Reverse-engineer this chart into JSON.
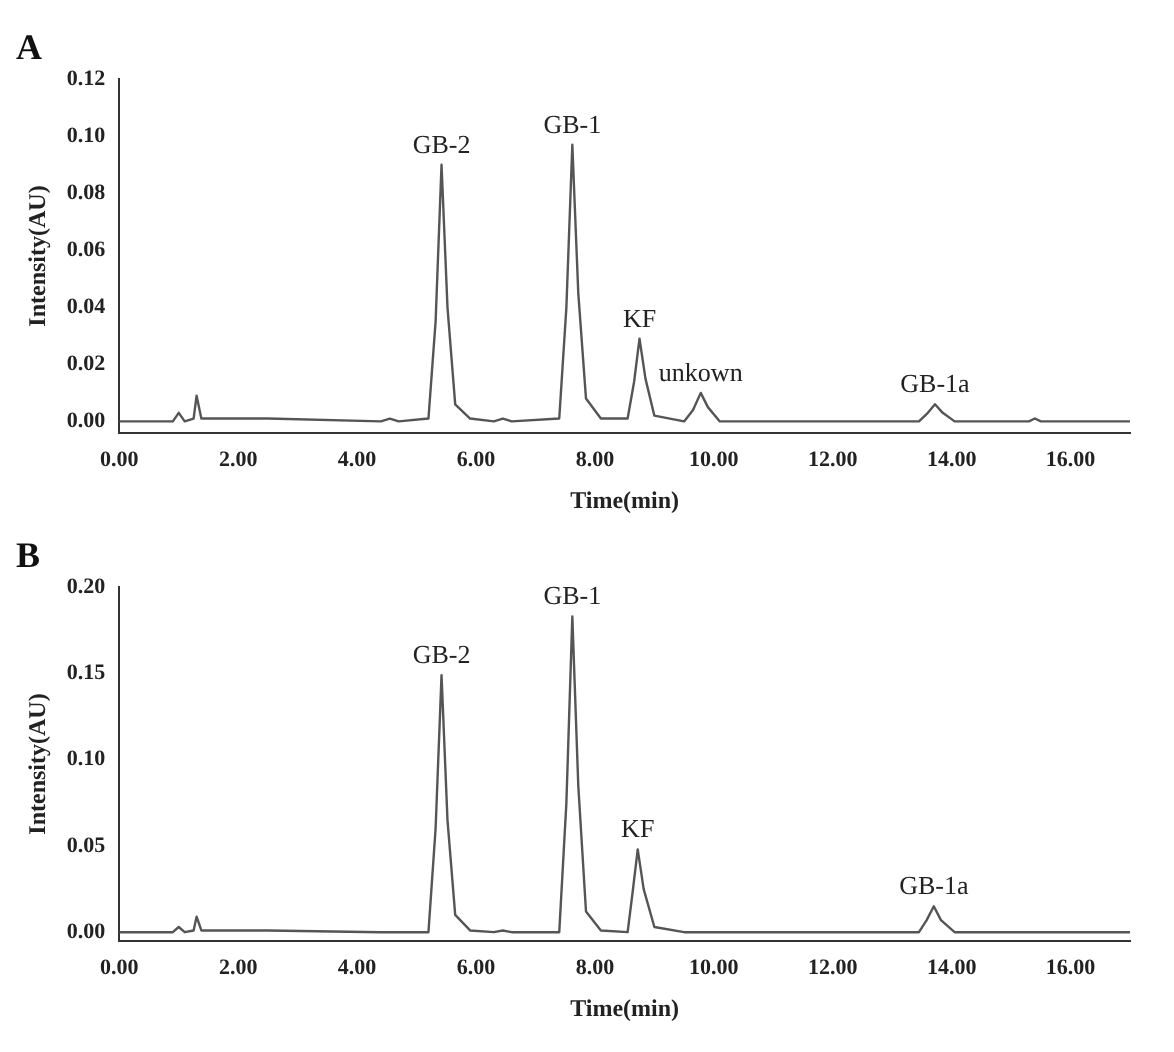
{
  "chart_data": [
    {
      "type": "line",
      "title": "A",
      "xlabel": "Time(min)",
      "ylabel": "Intensity(AU)",
      "color": "#555555",
      "marker": "none",
      "line_style": "solid",
      "grid": false,
      "legend": false,
      "x": [
        0,
        0.9,
        1.0,
        1.1,
        1.25,
        1.3,
        1.38,
        1.6,
        2.5,
        4.4,
        4.55,
        4.7,
        5.2,
        5.32,
        5.42,
        5.52,
        5.65,
        5.9,
        6.3,
        6.45,
        6.6,
        7.4,
        7.52,
        7.62,
        7.72,
        7.85,
        8.1,
        8.55,
        8.66,
        8.75,
        8.85,
        9.0,
        9.5,
        9.65,
        9.78,
        9.9,
        10.1,
        13.45,
        13.6,
        13.72,
        13.85,
        14.05,
        15.3,
        15.4,
        15.5,
        17
      ],
      "values": [
        0,
        0,
        0.003,
        0,
        0.001,
        0.009,
        0.001,
        0.001,
        0.001,
        0,
        0.001,
        0,
        0.001,
        0.035,
        0.09,
        0.04,
        0.006,
        0.001,
        0,
        0.001,
        0,
        0.001,
        0.04,
        0.097,
        0.045,
        0.008,
        0.001,
        0.001,
        0.014,
        0.029,
        0.015,
        0.002,
        0,
        0.004,
        0.01,
        0.005,
        0,
        0,
        0.003,
        0.006,
        0.003,
        0,
        0,
        0.001,
        0,
        0
      ],
      "xlim": [
        0,
        17
      ],
      "xticks": [
        {
          "value": 0,
          "label": "0.00"
        },
        {
          "value": 2,
          "label": "2.00"
        },
        {
          "value": 4,
          "label": "4.00"
        },
        {
          "value": 6,
          "label": "6.00"
        },
        {
          "value": 8,
          "label": "8.00"
        },
        {
          "value": 10,
          "label": "10.00"
        },
        {
          "value": 12,
          "label": "12.00"
        },
        {
          "value": 14,
          "label": "14.00"
        },
        {
          "value": 16,
          "label": "16.00"
        }
      ],
      "ylim": [
        -0.004,
        0.12
      ],
      "yticks": [
        {
          "value": 0,
          "label": "0.00"
        },
        {
          "value": 0.02,
          "label": "0.02"
        },
        {
          "value": 0.04,
          "label": "0.04"
        },
        {
          "value": 0.06,
          "label": "0.06"
        },
        {
          "value": 0.08,
          "label": "0.08"
        },
        {
          "value": 0.1,
          "label": "0.10"
        },
        {
          "value": 0.12,
          "label": "0.12"
        }
      ],
      "annotations": [
        {
          "text": "GB-2",
          "x": 5.42,
          "y": 0.09
        },
        {
          "text": "GB-1",
          "x": 7.62,
          "y": 0.097
        },
        {
          "text": "KF",
          "x": 8.75,
          "y": 0.029
        },
        {
          "text": "unkown",
          "x": 9.78,
          "y": 0.01
        },
        {
          "text": "GB-1a",
          "x": 13.72,
          "y": 0.006
        }
      ]
    },
    {
      "type": "line",
      "title": "B",
      "xlabel": "Time(min)",
      "ylabel": "Intensity(AU)",
      "color": "#555555",
      "marker": "none",
      "line_style": "solid",
      "grid": false,
      "legend": false,
      "x": [
        0,
        0.9,
        1.0,
        1.1,
        1.25,
        1.3,
        1.38,
        1.6,
        2.5,
        4.4,
        4.55,
        4.7,
        5.2,
        5.32,
        5.42,
        5.52,
        5.65,
        5.9,
        6.3,
        6.45,
        6.6,
        7.4,
        7.52,
        7.62,
        7.72,
        7.85,
        8.1,
        8.55,
        8.63,
        8.72,
        8.82,
        9.0,
        9.5,
        9.65,
        9.78,
        9.9,
        10.1,
        13.45,
        13.58,
        13.7,
        13.82,
        14.05,
        15.3,
        15.4,
        15.5,
        17
      ],
      "values": [
        0,
        0,
        0.003,
        0,
        0.001,
        0.009,
        0.001,
        0.001,
        0.001,
        0,
        0,
        0,
        0,
        0.06,
        0.149,
        0.065,
        0.01,
        0.001,
        0,
        0.001,
        0,
        0,
        0.075,
        0.183,
        0.085,
        0.012,
        0.001,
        0,
        0.022,
        0.048,
        0.025,
        0.003,
        0,
        0,
        0,
        0,
        0,
        0,
        0.007,
        0.015,
        0.007,
        0,
        0,
        0,
        0,
        0
      ],
      "xlim": [
        0,
        17
      ],
      "xticks": [
        {
          "value": 0,
          "label": "0.00"
        },
        {
          "value": 2,
          "label": "2.00"
        },
        {
          "value": 4,
          "label": "4.00"
        },
        {
          "value": 6,
          "label": "6.00"
        },
        {
          "value": 8,
          "label": "8.00"
        },
        {
          "value": 10,
          "label": "10.00"
        },
        {
          "value": 12,
          "label": "12.00"
        },
        {
          "value": 14,
          "label": "14.00"
        },
        {
          "value": 16,
          "label": "16.00"
        }
      ],
      "ylim": [
        -0.005,
        0.2
      ],
      "yticks": [
        {
          "value": 0,
          "label": "0.00"
        },
        {
          "value": 0.05,
          "label": "0.05"
        },
        {
          "value": 0.1,
          "label": "0.10"
        },
        {
          "value": 0.15,
          "label": "0.15"
        },
        {
          "value": 0.2,
          "label": "0.20"
        }
      ],
      "annotations": [
        {
          "text": "GB-2",
          "x": 5.42,
          "y": 0.149
        },
        {
          "text": "GB-1",
          "x": 7.62,
          "y": 0.183
        },
        {
          "text": "KF",
          "x": 8.72,
          "y": 0.048
        },
        {
          "text": "GB-1a",
          "x": 13.7,
          "y": 0.015
        }
      ]
    }
  ]
}
